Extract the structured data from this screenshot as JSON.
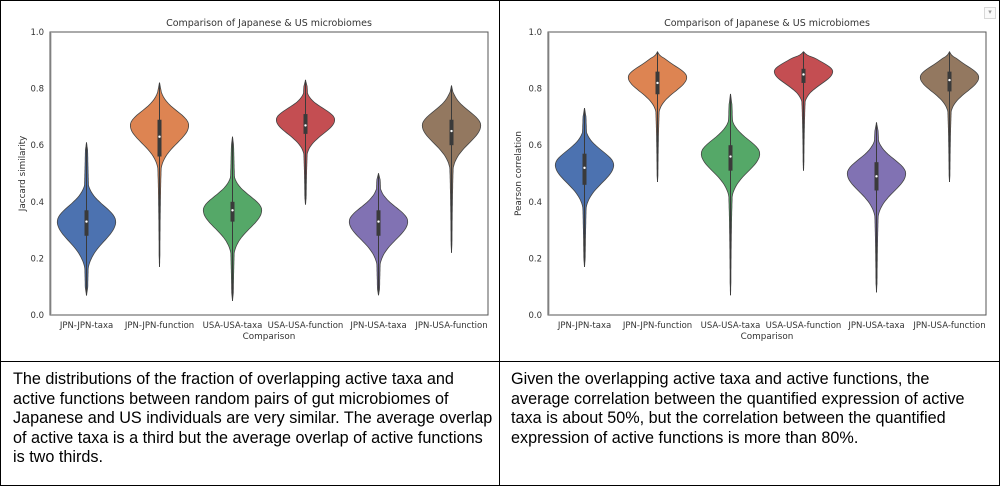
{
  "chart_data": [
    {
      "type": "violin",
      "title": "Comparison of Japanese & US microbiomes",
      "xlabel": "Comparison",
      "ylabel": "Jaccard similarity",
      "ylim": [
        0.0,
        1.0
      ],
      "yticks": [
        "0.0",
        "0.2",
        "0.4",
        "0.6",
        "0.8",
        "1.0"
      ],
      "ytick_values": [
        0.0,
        0.2,
        0.4,
        0.6,
        0.8,
        1.0
      ],
      "grid": false,
      "categories": [
        "JPN-JPN-taxa",
        "JPN-JPN-function",
        "USA-USA-taxa",
        "USA-USA-function",
        "JPN-USA-taxa",
        "JPN-USA-function"
      ],
      "series": [
        {
          "name": "JPN-JPN-taxa",
          "color": "#4c72b0",
          "min": 0.07,
          "q1": 0.28,
          "median": 0.33,
          "q3": 0.37,
          "max": 0.61,
          "mode": 0.33,
          "spread": 0.055
        },
        {
          "name": "JPN-JPN-function",
          "color": "#dd8452",
          "min": 0.17,
          "q1": 0.56,
          "median": 0.63,
          "q3": 0.69,
          "max": 0.82,
          "mode": 0.67,
          "spread": 0.05
        },
        {
          "name": "USA-USA-taxa",
          "color": "#55a868",
          "min": 0.05,
          "q1": 0.33,
          "median": 0.37,
          "q3": 0.4,
          "max": 0.63,
          "mode": 0.37,
          "spread": 0.05
        },
        {
          "name": "USA-USA-function",
          "color": "#c44e52",
          "min": 0.39,
          "q1": 0.64,
          "median": 0.67,
          "q3": 0.71,
          "max": 0.83,
          "mode": 0.69,
          "spread": 0.04
        },
        {
          "name": "JPN-USA-taxa",
          "color": "#8172b3",
          "min": 0.07,
          "q1": 0.28,
          "median": 0.33,
          "q3": 0.37,
          "max": 0.5,
          "mode": 0.33,
          "spread": 0.05
        },
        {
          "name": "JPN-USA-function",
          "color": "#937860",
          "min": 0.22,
          "q1": 0.6,
          "median": 0.65,
          "q3": 0.69,
          "max": 0.81,
          "mode": 0.67,
          "spread": 0.05
        }
      ]
    },
    {
      "type": "violin",
      "title": "Comparison of Japanese & US microbiomes",
      "xlabel": "Comparison",
      "ylabel": "Pearson correlation",
      "ylim": [
        0.0,
        1.0
      ],
      "yticks": [
        "0.0",
        "0.2",
        "0.4",
        "0.6",
        "0.8",
        "1.0"
      ],
      "ytick_values": [
        0.0,
        0.2,
        0.4,
        0.6,
        0.8,
        1.0
      ],
      "grid": false,
      "categories": [
        "JPN-JPN-taxa",
        "JPN-JPN-function",
        "USA-USA-taxa",
        "USA-USA-function",
        "JPN-USA-taxa",
        "JPN-USA-function"
      ],
      "series": [
        {
          "name": "JPN-JPN-taxa",
          "color": "#4c72b0",
          "min": 0.17,
          "q1": 0.46,
          "median": 0.52,
          "q3": 0.57,
          "max": 0.73,
          "mode": 0.53,
          "spread": 0.05
        },
        {
          "name": "JPN-JPN-function",
          "color": "#dd8452",
          "min": 0.47,
          "q1": 0.78,
          "median": 0.82,
          "q3": 0.86,
          "max": 0.93,
          "mode": 0.84,
          "spread": 0.04
        },
        {
          "name": "USA-USA-taxa",
          "color": "#55a868",
          "min": 0.07,
          "q1": 0.51,
          "median": 0.56,
          "q3": 0.6,
          "max": 0.78,
          "mode": 0.57,
          "spread": 0.05
        },
        {
          "name": "USA-USA-function",
          "color": "#c44e52",
          "min": 0.51,
          "q1": 0.82,
          "median": 0.85,
          "q3": 0.87,
          "max": 0.93,
          "mode": 0.86,
          "spread": 0.035
        },
        {
          "name": "JPN-USA-taxa",
          "color": "#8172b3",
          "min": 0.08,
          "q1": 0.44,
          "median": 0.49,
          "q3": 0.54,
          "max": 0.68,
          "mode": 0.5,
          "spread": 0.05
        },
        {
          "name": "JPN-USA-function",
          "color": "#937860",
          "min": 0.47,
          "q1": 0.79,
          "median": 0.83,
          "q3": 0.86,
          "max": 0.93,
          "mode": 0.84,
          "spread": 0.04
        }
      ]
    }
  ],
  "captions": {
    "left": "The distributions of the fraction of overlapping active taxa and active functions between random pairs of gut microbiomes of Japanese and US individuals are very similar.  The average overlap of active taxa is a third but the average overlap of active functions is two thirds.",
    "right": "Given the overlapping active taxa and active functions, the average correlation between the quantified expression of active taxa is about 50%, but the correlation between the quantified expression of active functions is more than 80%."
  },
  "menu_icon": "chevron-down-icon"
}
